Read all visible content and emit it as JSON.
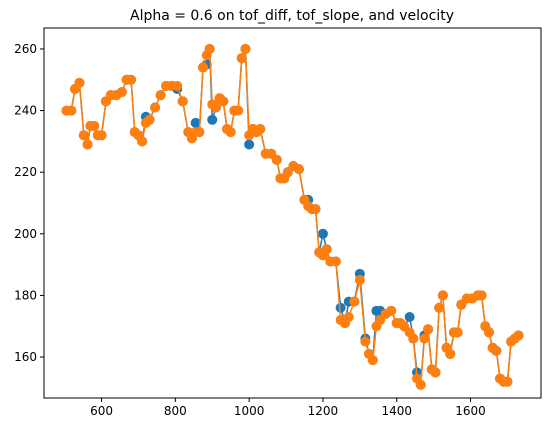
{
  "chart_data": {
    "type": "line",
    "title": "Alpha = 0.6 on tof_diff, tof_slope, and velocity",
    "x": [
      505,
      518,
      528,
      540,
      552,
      562,
      570,
      580,
      590,
      600,
      612,
      625,
      640,
      655,
      668,
      680,
      690,
      700,
      710,
      720,
      730,
      745,
      760,
      775,
      790,
      805,
      820,
      835,
      845,
      855,
      865,
      875,
      885,
      893,
      900,
      910,
      920,
      930,
      940,
      950,
      960,
      970,
      980,
      990,
      1000,
      1010,
      1020,
      1030,
      1045,
      1060,
      1075,
      1085,
      1095,
      1105,
      1120,
      1135,
      1150,
      1160,
      1170,
      1180,
      1190,
      1200,
      1210,
      1220,
      1235,
      1248,
      1260,
      1270,
      1285,
      1300,
      1315,
      1325,
      1335,
      1345,
      1355,
      1370,
      1385,
      1400,
      1410,
      1420,
      1435,
      1445,
      1455,
      1465,
      1475,
      1485,
      1495,
      1505,
      1515,
      1525,
      1535,
      1545,
      1555,
      1565,
      1575,
      1590,
      1605,
      1620,
      1630,
      1640,
      1650,
      1660,
      1670,
      1680,
      1690,
      1700,
      1710,
      1720,
      1730
    ],
    "series": [
      {
        "color": "#1f77b4",
        "values": [
          240,
          240,
          247,
          249,
          232,
          229,
          235,
          235,
          232,
          232,
          243,
          245,
          245,
          246,
          250,
          250,
          233,
          232,
          230,
          238,
          237,
          241,
          245,
          248,
          248,
          247,
          243,
          233,
          231,
          236,
          233,
          254,
          255,
          260,
          237,
          241,
          244,
          243,
          234,
          233,
          240,
          240,
          257,
          260,
          229,
          234,
          233,
          234,
          226,
          226,
          224,
          218,
          218,
          220,
          222,
          221,
          211,
          211,
          208,
          208,
          194,
          200,
          195,
          191,
          191,
          176,
          171,
          178,
          178,
          187,
          166,
          161,
          159,
          175,
          175,
          174,
          175,
          171,
          171,
          170,
          173,
          166,
          155,
          151,
          167,
          169,
          156,
          155,
          176,
          180,
          163,
          161,
          168,
          168,
          177,
          179,
          179,
          180,
          180,
          170,
          168,
          163,
          162,
          153,
          152,
          152,
          165,
          166,
          167
        ]
      },
      {
        "color": "#ff7f0e",
        "values": [
          240,
          240,
          247,
          249,
          232,
          229,
          235,
          235,
          232,
          232,
          243,
          245,
          245,
          246,
          250,
          250,
          233,
          232,
          230,
          236,
          237,
          241,
          245,
          248,
          248,
          248,
          243,
          233,
          231,
          233,
          233,
          254,
          258,
          260,
          242,
          241,
          244,
          243,
          234,
          233,
          240,
          240,
          257,
          260,
          232,
          234,
          233,
          234,
          226,
          226,
          224,
          218,
          218,
          220,
          222,
          221,
          211,
          209,
          208,
          208,
          194,
          193,
          195,
          191,
          191,
          172,
          171,
          173,
          178,
          185,
          165,
          161,
          159,
          170,
          172,
          174,
          175,
          171,
          171,
          170,
          168,
          166,
          153,
          151,
          166,
          169,
          156,
          155,
          176,
          180,
          163,
          161,
          168,
          168,
          177,
          179,
          179,
          180,
          180,
          170,
          168,
          163,
          162,
          153,
          152,
          152,
          165,
          166,
          167
        ]
      }
    ],
    "xlim": [
      444,
      1791
    ],
    "ylim": [
      146.7,
      266.8
    ],
    "xticks": [
      600,
      800,
      1000,
      1200,
      1400,
      1600
    ],
    "yticks": [
      160,
      180,
      200,
      220,
      240,
      260
    ]
  }
}
